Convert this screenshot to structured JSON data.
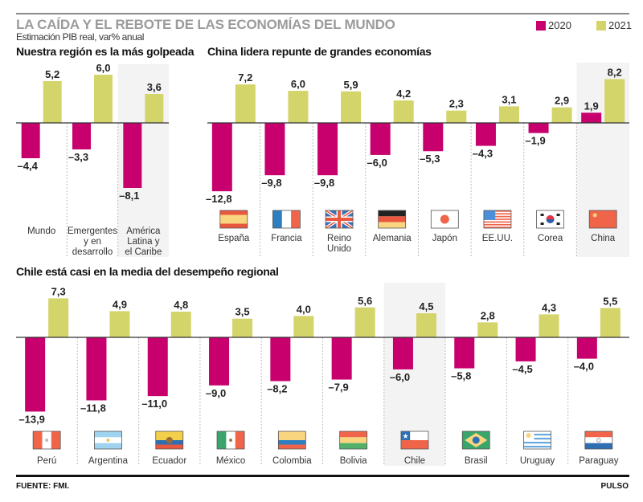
{
  "header": {
    "title": "LA CAÍDA Y EL REBOTE DE LAS ECONOMÍAS DEL MUNDO",
    "subtitle": "Estimación PIB real, var% anual"
  },
  "legend": [
    {
      "label": "2020",
      "color": "#c8006e"
    },
    {
      "label": "2021",
      "color": "#d3d46a"
    }
  ],
  "colors": {
    "y2020": "#c8006e",
    "y2021": "#d3d46a",
    "highlight_bg": "#f3f3f3",
    "divider": "#bdbdbd",
    "axis": "#333333"
  },
  "footer": {
    "source": "FUENTE: FMI.",
    "brand": "PULSO"
  },
  "chart_data": [
    {
      "type": "bar",
      "id": "regions",
      "title": "Nuestra región es la más golpeada",
      "categories": [
        "Mundo",
        "Emergentes y en desarrollo",
        "América Latina y el Caribe"
      ],
      "category_lines": [
        [
          "Mundo"
        ],
        [
          "Emergentes",
          "y en",
          "desarrollo"
        ],
        [
          "América",
          "Latina y",
          "el Caribe"
        ]
      ],
      "series": [
        {
          "name": "2020",
          "values": [
            -4.4,
            -3.3,
            -8.1
          ],
          "labels": [
            "-4,4",
            "-3,3",
            "-8,1"
          ]
        },
        {
          "name": "2021",
          "values": [
            5.2,
            6.0,
            3.6
          ],
          "labels": [
            "5,2",
            "6,0",
            "3,6"
          ]
        }
      ],
      "highlight": "América Latina y el Caribe",
      "flags": []
    },
    {
      "type": "bar",
      "id": "majors",
      "title": "China lidera repunte de grandes economías",
      "categories": [
        "España",
        "Francia",
        "Reino Unido",
        "Alemania",
        "Japón",
        "EE.UU.",
        "Corea",
        "China"
      ],
      "category_lines": [
        [
          "España"
        ],
        [
          "Francia"
        ],
        [
          "Reino",
          "Unido"
        ],
        [
          "Alemania"
        ],
        [
          "Japón"
        ],
        [
          "EE.UU."
        ],
        [
          "Corea"
        ],
        [
          "China"
        ]
      ],
      "series": [
        {
          "name": "2020",
          "values": [
            -12.8,
            -9.8,
            -9.8,
            -6.0,
            -5.3,
            -4.3,
            -1.9,
            1.9
          ],
          "labels": [
            "-12,8",
            "-9,8",
            "-9,8",
            "-6,0",
            "-5,3",
            "-4,3",
            "-1,9",
            "1,9"
          ]
        },
        {
          "name": "2021",
          "values": [
            7.2,
            6.0,
            5.9,
            4.2,
            2.3,
            3.1,
            2.9,
            8.2
          ],
          "labels": [
            "7,2",
            "6,0",
            "5,9",
            "4,2",
            "2,3",
            "3,1",
            "2,9",
            "8,2"
          ]
        }
      ],
      "highlight": "China",
      "flags": [
        "spain-flag",
        "france-flag",
        "uk-flag",
        "germany-flag",
        "japan-flag",
        "usa-flag",
        "korea-flag",
        "china-flag"
      ]
    },
    {
      "type": "bar",
      "id": "latam",
      "title": "Chile está casi en la media del desempeño regional",
      "categories": [
        "Perú",
        "Argentina",
        "Ecuador",
        "México",
        "Colombia",
        "Bolivia",
        "Chile",
        "Brasil",
        "Uruguay",
        "Paraguay"
      ],
      "category_lines": [
        [
          "Perú"
        ],
        [
          "Argentina"
        ],
        [
          "Ecuador"
        ],
        [
          "México"
        ],
        [
          "Colombia"
        ],
        [
          "Bolivia"
        ],
        [
          "Chile"
        ],
        [
          "Brasil"
        ],
        [
          "Uruguay"
        ],
        [
          "Paraguay"
        ]
      ],
      "series": [
        {
          "name": "2020",
          "values": [
            -13.9,
            -11.8,
            -11.0,
            -9.0,
            -8.2,
            -7.9,
            -6.0,
            -5.8,
            -4.5,
            -4.0
          ],
          "labels": [
            "-13,9",
            "-11,8",
            "-11,0",
            "-9,0",
            "-8,2",
            "-7,9",
            "-6,0",
            "-5,8",
            "-4,5",
            "-4,0"
          ]
        },
        {
          "name": "2021",
          "values": [
            7.3,
            4.9,
            4.8,
            3.5,
            4.0,
            5.6,
            4.5,
            2.8,
            4.3,
            5.5
          ],
          "labels": [
            "7,3",
            "4,9",
            "4,8",
            "3,5",
            "4,0",
            "5,6",
            "4,5",
            "2,8",
            "4,3",
            "5,5"
          ]
        }
      ],
      "highlight": "Chile",
      "flags": [
        "peru-flag",
        "argentina-flag",
        "ecuador-flag",
        "mexico-flag",
        "colombia-flag",
        "bolivia-flag",
        "chile-flag",
        "brazil-flag",
        "uruguay-flag",
        "paraguay-flag"
      ]
    }
  ]
}
